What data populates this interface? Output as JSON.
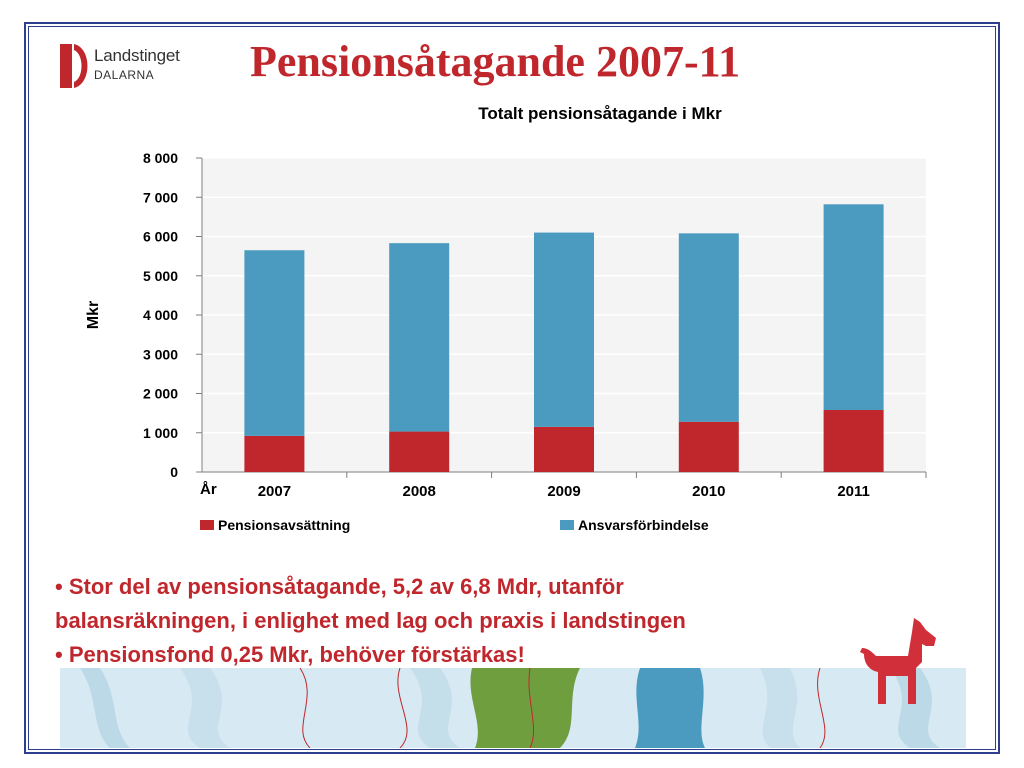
{
  "logo": {
    "name": "Landstinget",
    "sub": "DALARNA",
    "icon": "landstinget-logo-icon",
    "color": "#c0272d"
  },
  "page_title": "Pensionsåtagande 2007-11",
  "bullets": [
    "• Stor del av pensionsåtagande, 5,2 av 6,8 Mdr, utanför",
    "balansräkningen, i enlighet med lag och praxis i landstingen",
    "• Pensionsfond 0,25 Mkr, behöver förstärkas!"
  ],
  "colors": {
    "title": "#c0272d",
    "frame": "#2e3f8f",
    "series_1": "#c0272d",
    "series_2": "#4a9bbf"
  },
  "decorations": {
    "horse_icon": "dala-horse-icon",
    "banner": "decorative-banner"
  },
  "chart_data": {
    "type": "bar",
    "stacked": true,
    "title": "Totalt pensionsåtagande i Mkr",
    "xlabel": "År",
    "ylabel": "Mkr",
    "categories": [
      "2007",
      "2008",
      "2009",
      "2010",
      "2011"
    ],
    "series": [
      {
        "name": "Pensionsavsättning",
        "color": "#c0272d",
        "values": [
          920,
          1030,
          1150,
          1280,
          1580
        ]
      },
      {
        "name": "Ansvarsförbindelse",
        "color": "#4a9bbf",
        "values": [
          4730,
          4800,
          4950,
          4800,
          5240
        ]
      }
    ],
    "ylim": [
      0,
      8000
    ],
    "yticks": [
      0,
      1000,
      2000,
      3000,
      4000,
      5000,
      6000,
      7000,
      8000
    ],
    "ytick_labels": [
      "0",
      "1 000",
      "2 000",
      "3 000",
      "4 000",
      "5 000",
      "6 000",
      "7 000",
      "8 000"
    ],
    "grid": true,
    "legend": "bottom"
  }
}
